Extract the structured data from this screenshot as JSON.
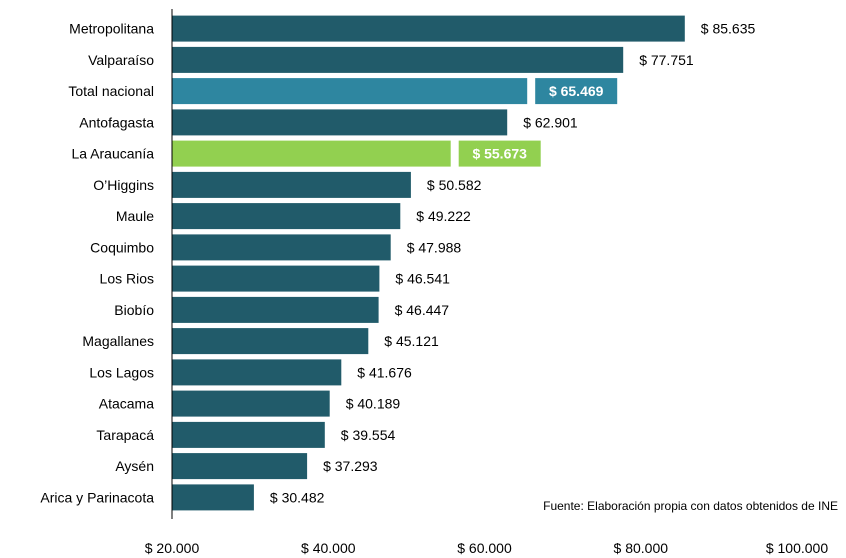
{
  "chart_data": {
    "type": "bar",
    "orientation": "horizontal",
    "categories": [
      "Metropolitana",
      "Valparaíso",
      "Total nacional",
      "Antofagasta",
      "La Araucanía",
      "O’Higgins",
      "Maule",
      "Coquimbo",
      "Los Rios",
      "Biobío",
      "Magallanes",
      "Los Lagos",
      "Atacama",
      "Tarapacá",
      "Aysén",
      "Arica y Parinacota"
    ],
    "values": [
      85635,
      77751,
      65469,
      62901,
      55673,
      50582,
      49222,
      47988,
      46541,
      46447,
      45121,
      41676,
      40189,
      39554,
      37293,
      30482
    ],
    "value_labels": [
      "$ 85.635",
      "$ 77.751",
      "$ 65.469",
      "$ 62.901",
      "$ 55.673",
      "$ 50.582",
      "$ 49.222",
      "$ 47.988",
      "$ 46.541",
      "$ 46.447",
      "$ 45.121",
      "$ 41.676",
      "$ 40.189",
      "$ 39.554",
      "$ 37.293",
      "$ 30.482"
    ],
    "highlight": {
      "Total nacional": "#2e86a0",
      "La Araucanía": "#92d050"
    },
    "default_color": "#215b6a",
    "xlim": [
      20000,
      100000
    ],
    "x_ticks": [
      20000,
      40000,
      60000,
      80000,
      100000
    ],
    "x_tick_labels": [
      "$ 20.000",
      "$ 40.000",
      "$ 60.000",
      "$ 80.000",
      "$ 100.000"
    ],
    "grid": false,
    "annotation": "Fuente: Elaboración propia con datos obtenidos de INE"
  }
}
